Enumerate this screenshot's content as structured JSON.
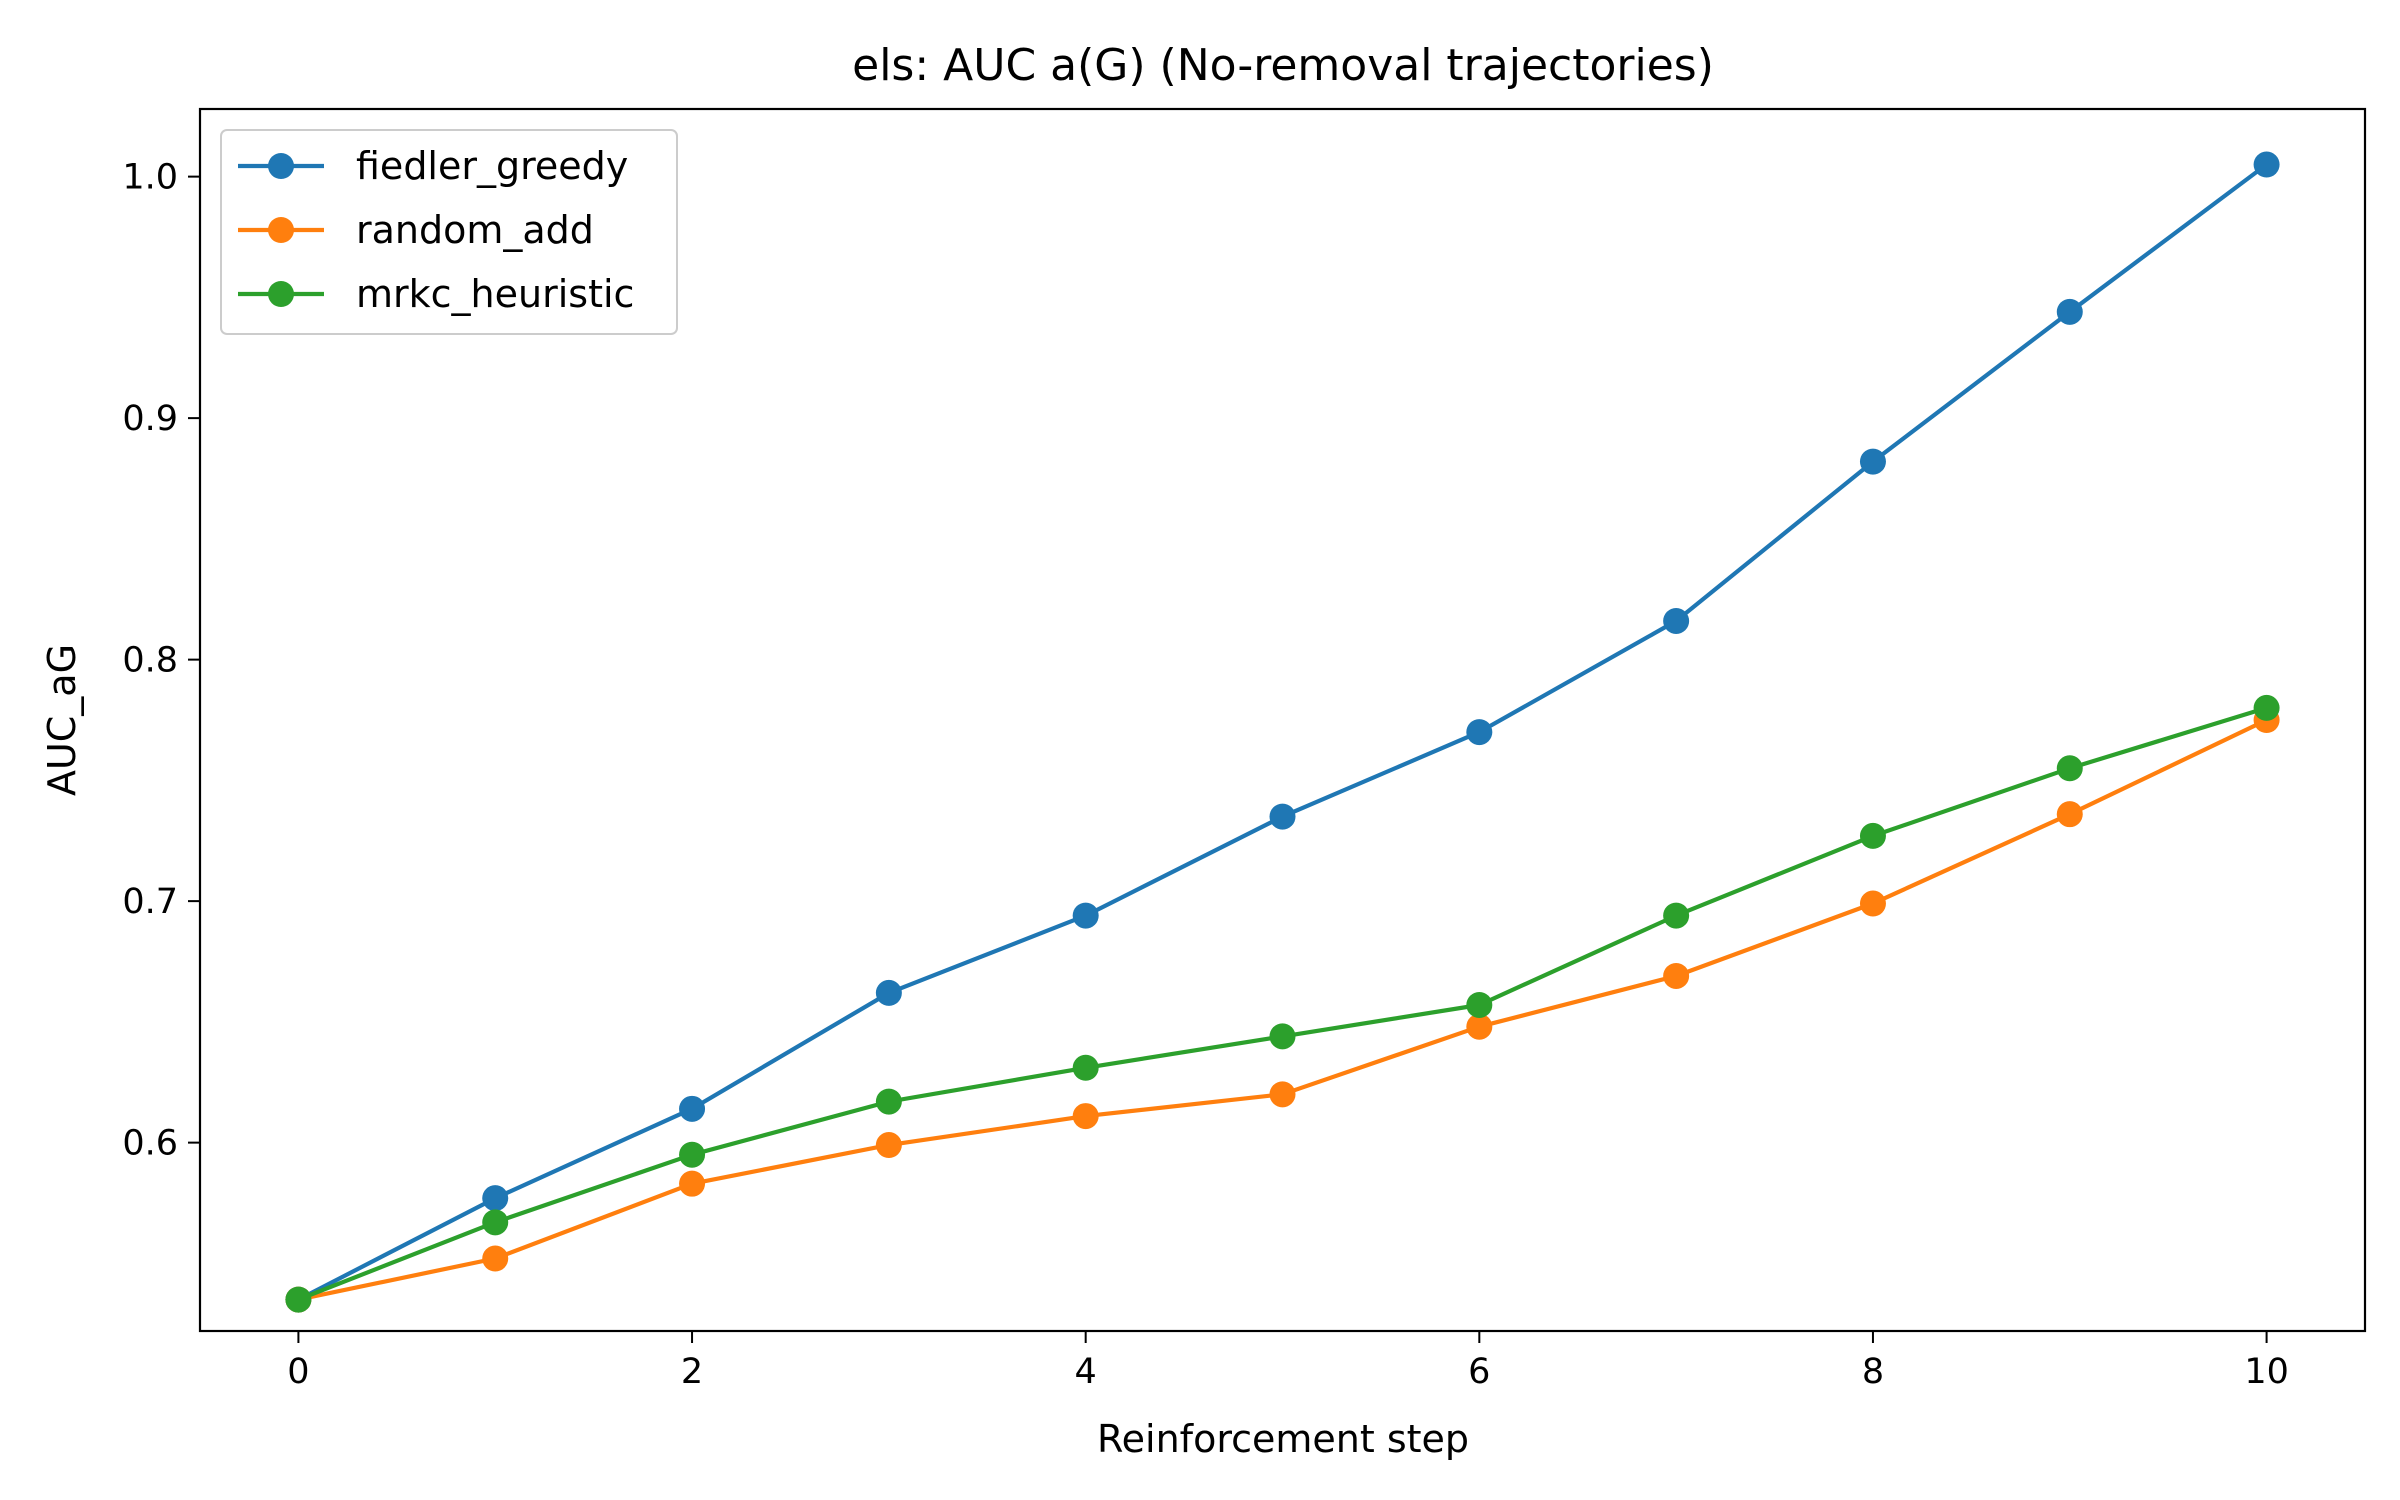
{
  "chart_data": {
    "type": "line",
    "title": "els: AUC a(G) (No-removal trajectories)",
    "xlabel": "Reinforcement step",
    "ylabel": "AUC_aG",
    "xlim": [
      -0.5,
      10.5
    ],
    "ylim": [
      0.522,
      1.028
    ],
    "x_ticks": [
      0,
      2,
      4,
      6,
      8,
      10
    ],
    "y_ticks": [
      0.6,
      0.7,
      0.8,
      0.9,
      1.0
    ],
    "grid": false,
    "legend_position": "top-left",
    "x": [
      0,
      1,
      2,
      3,
      4,
      5,
      6,
      7,
      8,
      9,
      10
    ],
    "series": [
      {
        "name": "fiedler_greedy",
        "color": "#1f77b4",
        "values": [
          0.535,
          0.577,
          0.614,
          0.662,
          0.694,
          0.735,
          0.77,
          0.816,
          0.882,
          0.944,
          1.005
        ]
      },
      {
        "name": "random_add",
        "color": "#ff7f0e",
        "values": [
          0.535,
          0.552,
          0.583,
          0.599,
          0.611,
          0.62,
          0.648,
          0.669,
          0.699,
          0.736,
          0.775
        ]
      },
      {
        "name": "mrkc_heuristic",
        "color": "#2ca02c",
        "values": [
          0.535,
          0.567,
          0.595,
          0.617,
          0.631,
          0.644,
          0.657,
          0.694,
          0.727,
          0.755,
          0.78
        ]
      }
    ]
  }
}
